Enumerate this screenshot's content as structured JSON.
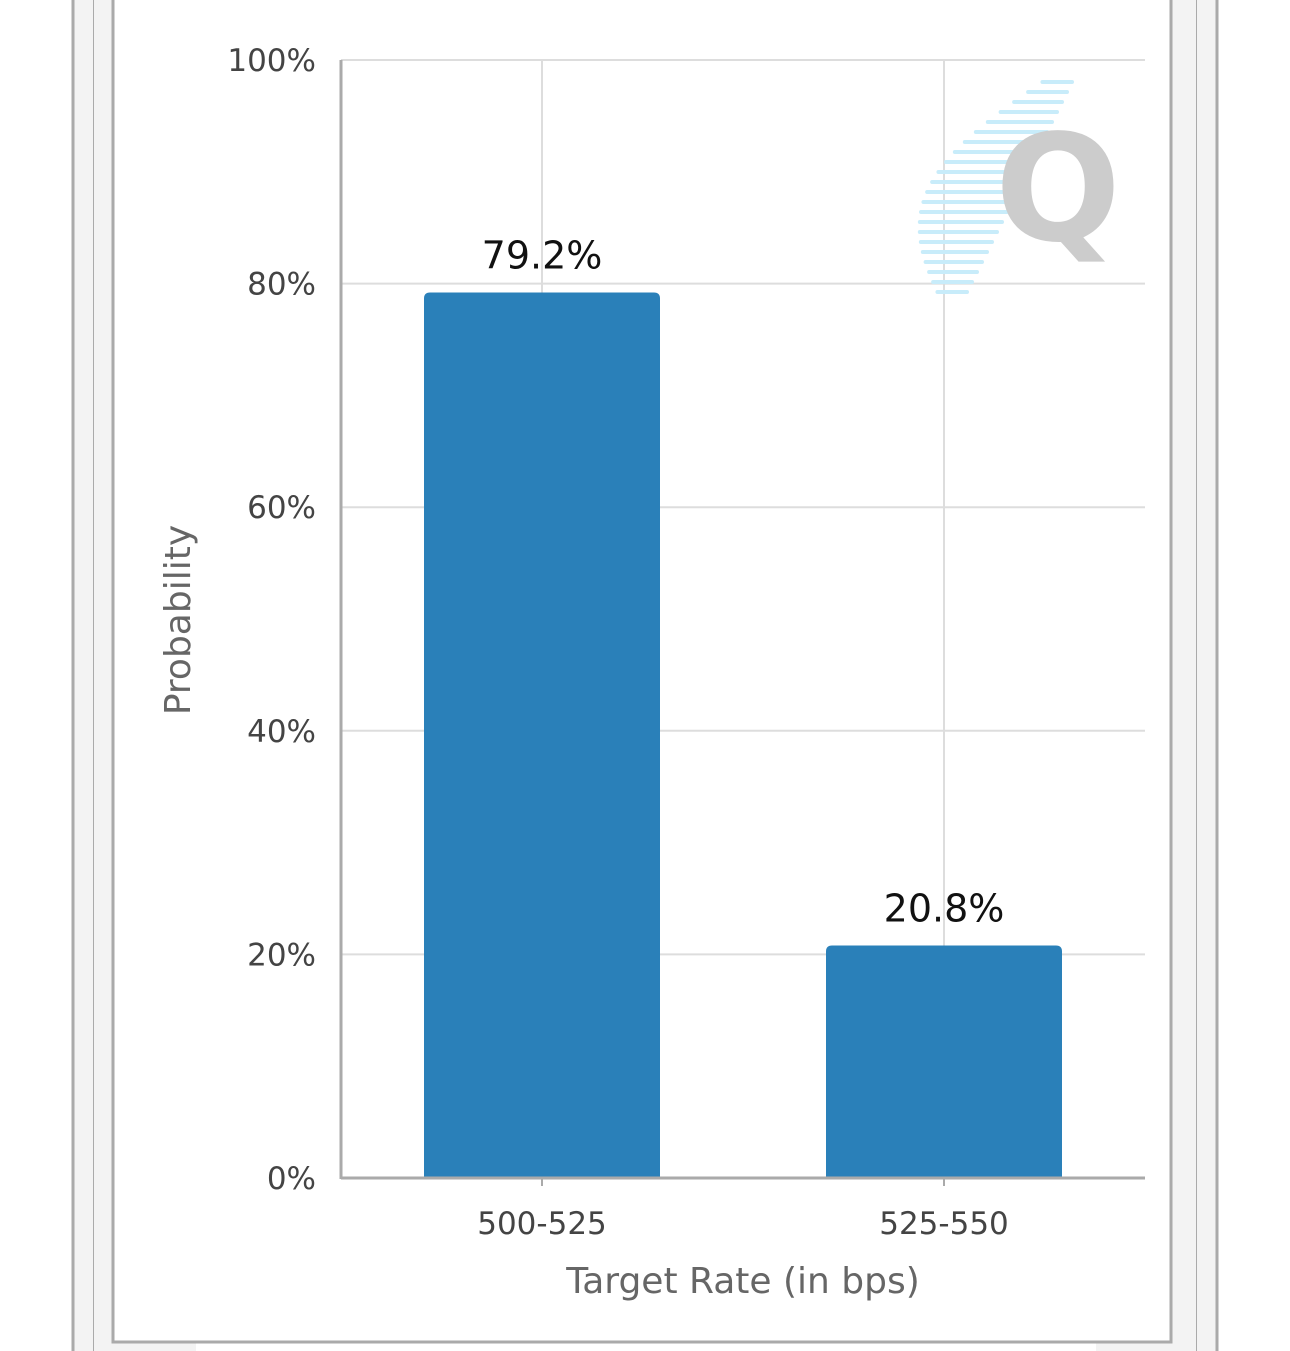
{
  "chart_data": {
    "type": "bar",
    "categories": [
      "500-525",
      "525-550"
    ],
    "values": [
      79.2,
      20.8
    ],
    "data_labels": [
      "79.2%",
      "20.8%"
    ],
    "title": "",
    "xlabel": "Target Rate (in bps)",
    "ylabel": "Probability",
    "ylim": [
      0,
      100
    ],
    "yticks": [
      0,
      20,
      40,
      60,
      80,
      100
    ],
    "ytick_labels": [
      "0%",
      "20%",
      "40%",
      "60%",
      "80%",
      "100%"
    ],
    "grid": true,
    "legend": "none",
    "bar_color": "#2a80b9",
    "gridline_color": "#dddddd",
    "axis_color": "#aaaaaa"
  },
  "watermark": {
    "icon": "q-logo-icon",
    "letter": "Q"
  },
  "colors": {
    "frame_border": "#aaaaaa",
    "frame_fill": "#f3f3f3"
  }
}
